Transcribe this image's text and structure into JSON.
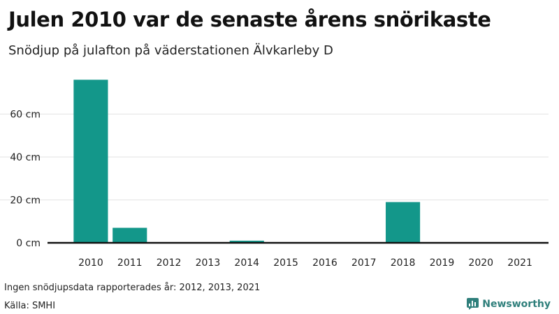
{
  "header": {
    "title": "Julen 2010 var de senaste årens snörikaste",
    "subtitle": "Snödjup på julafton på väderstationen Älvkarleby D"
  },
  "chart_data": {
    "type": "bar",
    "categories": [
      "2010",
      "2011",
      "2012",
      "2013",
      "2014",
      "2015",
      "2016",
      "2017",
      "2018",
      "2019",
      "2020",
      "2021"
    ],
    "values": [
      76,
      7,
      0,
      0,
      1,
      0,
      0,
      0,
      19,
      0,
      0,
      0
    ],
    "unit": "cm",
    "yticks": [
      0,
      20,
      40,
      60
    ],
    "ytick_labels": [
      "0 cm",
      "20 cm",
      "40 cm",
      "60 cm"
    ],
    "ylim": [
      0,
      80
    ],
    "grid": true,
    "bar_color": "#13978a"
  },
  "footer": {
    "note": "Ingen snödjupsdata rapporterades år: 2012, 2013, 2021",
    "source": "Källa: SMHI",
    "brand": "Newsworthy",
    "brand_color": "#2f7f7b"
  }
}
